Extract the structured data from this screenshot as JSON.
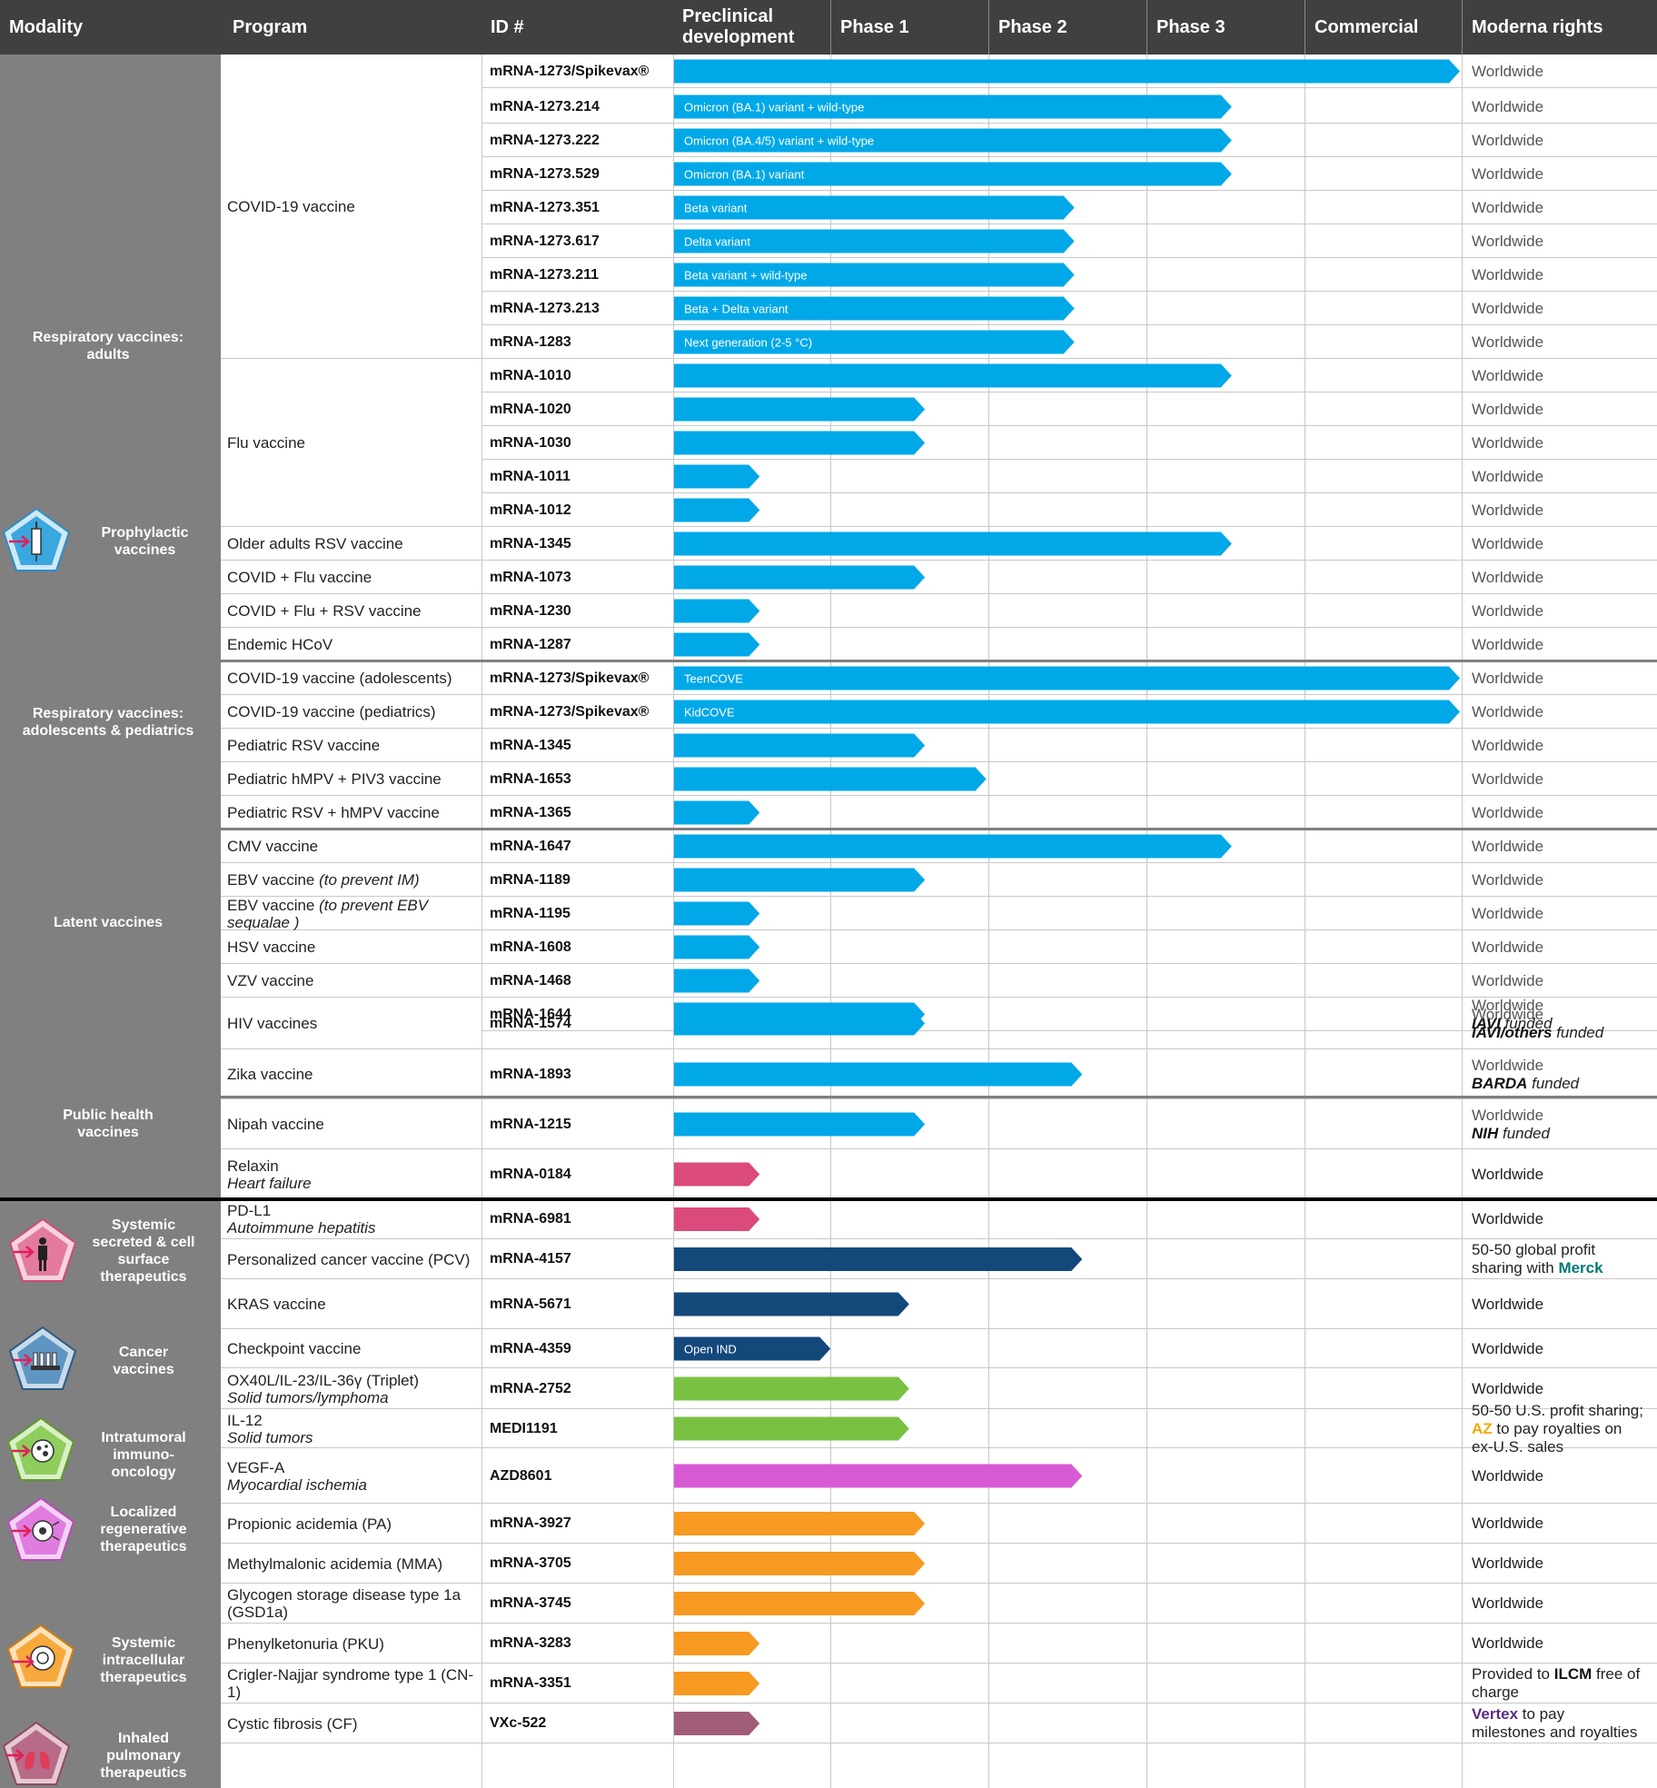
{
  "headers": {
    "modality": "Modality",
    "program": "Program",
    "id": "ID #",
    "preclinical": [
      "Preclinical",
      "development"
    ],
    "phase1": "Phase 1",
    "phase2": "Phase 2",
    "phase3": "Phase 3",
    "commercial": "Commercial",
    "rights": "Moderna rights"
  },
  "modalities": [
    {
      "label": [
        "Respiratory vaccines:",
        "adults"
      ],
      "icon": null
    },
    {
      "label": [
        "Prophylactic",
        "vaccines"
      ],
      "icon": "syringe-icon"
    },
    {
      "label": [
        "Respiratory vaccines:",
        "adolescents & pediatrics"
      ],
      "icon": null
    },
    {
      "label": [
        "Latent vaccines"
      ],
      "icon": null
    },
    {
      "label": [
        "Public health",
        "vaccines"
      ],
      "icon": null
    },
    {
      "label": [
        "Systemic",
        "secreted & cell",
        "surface",
        "therapeutics"
      ],
      "icon": "person-icon"
    },
    {
      "label": [
        "Cancer",
        "vaccines"
      ],
      "icon": "vials-icon"
    },
    {
      "label": [
        "Intratumoral",
        "immuno-",
        "oncology"
      ],
      "icon": "tumor-cell-icon"
    },
    {
      "label": [
        "Localized",
        "regenerative",
        "therapeutics"
      ],
      "icon": "regenerative-cell-icon"
    },
    {
      "label": [
        "Systemic",
        "intracellular",
        "therapeutics"
      ],
      "icon": "intracellular-cell-icon"
    },
    {
      "label": [
        "Inhaled",
        "pulmonary",
        "therapeutics"
      ],
      "icon": "lungs-icon"
    }
  ],
  "colors": {
    "header_bg": "#404040",
    "modality_bg": "#808080",
    "infectious": "#00A8E8",
    "systemic_secreted": "#DB4A7C",
    "cancer": "#13487B",
    "intratumoral": "#79C142",
    "regenerative": "#D65AD4",
    "intracellular": "#F79A21",
    "pulmonary": "#A15C78",
    "merck": "#007A73",
    "az": "#F0AB00",
    "vertex": "#5B2C83"
  },
  "chart_data": {
    "type": "pipeline",
    "stages": [
      "Preclinical development",
      "Phase 1",
      "Phase 2",
      "Phase 3",
      "Commercial"
    ],
    "stage_scale": "0 = start of Preclinical, 1 = end of Preclinical, 5 = end of Commercial",
    "programs": [
      {
        "program": "COVID-19 vaccine",
        "id": "mRNA-1273/Spikevax®",
        "progress": 5.0,
        "bar_label": "",
        "color": "infectious",
        "rights": [
          "Worldwide"
        ]
      },
      {
        "program": "",
        "id": "mRNA-1273.214",
        "progress": 3.55,
        "bar_label": "Omicron (BA.1) variant + wild-type",
        "color": "infectious",
        "rights": [
          "Worldwide"
        ]
      },
      {
        "program": "",
        "id": "mRNA-1273.222",
        "progress": 3.55,
        "bar_label": "Omicron (BA.4/5) variant + wild-type",
        "color": "infectious",
        "rights": [
          "Worldwide"
        ]
      },
      {
        "program": "",
        "id": "mRNA-1273.529",
        "progress": 3.55,
        "bar_label": "Omicron (BA.1) variant",
        "color": "infectious",
        "rights": [
          "Worldwide"
        ]
      },
      {
        "program": "",
        "id": "mRNA-1273.351",
        "progress": 2.55,
        "bar_label": "Beta variant",
        "color": "infectious",
        "rights": [
          "Worldwide"
        ]
      },
      {
        "program": "",
        "id": "mRNA-1273.617",
        "progress": 2.55,
        "bar_label": "Delta variant",
        "color": "infectious",
        "rights": [
          "Worldwide"
        ]
      },
      {
        "program": "",
        "id": "mRNA-1273.211",
        "progress": 2.55,
        "bar_label": "Beta variant + wild-type",
        "color": "infectious",
        "rights": [
          "Worldwide"
        ]
      },
      {
        "program": "",
        "id": "mRNA-1273.213",
        "progress": 2.55,
        "bar_label": "Beta + Delta variant",
        "color": "infectious",
        "rights": [
          "Worldwide"
        ]
      },
      {
        "program": "",
        "id": "mRNA-1283",
        "progress": 2.55,
        "bar_label": "Next generation (2-5 °C)",
        "color": "infectious",
        "rights": [
          "Worldwide"
        ]
      },
      {
        "program": "Flu vaccine",
        "id": "mRNA-1010",
        "progress": 3.55,
        "bar_label": "",
        "color": "infectious",
        "rights": [
          "Worldwide"
        ]
      },
      {
        "program": "",
        "id": "mRNA-1020",
        "progress": 1.6,
        "bar_label": "",
        "color": "infectious",
        "rights": [
          "Worldwide"
        ]
      },
      {
        "program": "",
        "id": "mRNA-1030",
        "progress": 1.6,
        "bar_label": "",
        "color": "infectious",
        "rights": [
          "Worldwide"
        ]
      },
      {
        "program": "",
        "id": "mRNA-1011",
        "progress": 0.55,
        "bar_label": "",
        "color": "infectious",
        "rights": [
          "Worldwide"
        ]
      },
      {
        "program": "",
        "id": "mRNA-1012",
        "progress": 0.55,
        "bar_label": "",
        "color": "infectious",
        "rights": [
          "Worldwide"
        ]
      },
      {
        "program": "Older adults RSV vaccine",
        "id": "mRNA-1345",
        "progress": 3.55,
        "bar_label": "",
        "color": "infectious",
        "rights": [
          "Worldwide"
        ]
      },
      {
        "program": "COVID + Flu vaccine",
        "id": "mRNA-1073",
        "progress": 1.6,
        "bar_label": "",
        "color": "infectious",
        "rights": [
          "Worldwide"
        ]
      },
      {
        "program": "COVID + Flu + RSV vaccine",
        "id": "mRNA-1230",
        "progress": 0.55,
        "bar_label": "",
        "color": "infectious",
        "rights": [
          "Worldwide"
        ]
      },
      {
        "program": "Endemic HCoV",
        "id": "mRNA-1287",
        "progress": 0.55,
        "bar_label": "",
        "color": "infectious",
        "rights": [
          "Worldwide"
        ]
      },
      {
        "program": "COVID-19 vaccine (adolescents)",
        "id": "mRNA-1273/Spikevax®",
        "progress": 5.0,
        "bar_label": "TeenCOVE",
        "color": "infectious",
        "rights": [
          "Worldwide"
        ]
      },
      {
        "program": "COVID-19 vaccine (pediatrics)",
        "id": "mRNA-1273/Spikevax®",
        "progress": 5.0,
        "bar_label": "KidCOVE",
        "color": "infectious",
        "rights": [
          "Worldwide"
        ]
      },
      {
        "program": "Pediatric  RSV vaccine",
        "id": "mRNA-1345",
        "progress": 1.6,
        "bar_label": "",
        "color": "infectious",
        "rights": [
          "Worldwide"
        ]
      },
      {
        "program": "Pediatric hMPV + PIV3 vaccine",
        "id": "mRNA-1653",
        "progress": 1.99,
        "bar_label": "",
        "color": "infectious",
        "rights": [
          "Worldwide"
        ]
      },
      {
        "program": "Pediatric RSV + hMPV vaccine",
        "id": "mRNA-1365",
        "progress": 0.55,
        "bar_label": "",
        "color": "infectious",
        "rights": [
          "Worldwide"
        ]
      },
      {
        "program": "CMV vaccine",
        "id": "mRNA-1647",
        "progress": 3.55,
        "bar_label": "",
        "color": "infectious",
        "rights": [
          "Worldwide"
        ]
      },
      {
        "program": "EBV vaccine ",
        "program_sub": "(to prevent IM)",
        "id": "mRNA-1189",
        "progress": 1.6,
        "bar_label": "",
        "color": "infectious",
        "rights": [
          "Worldwide"
        ]
      },
      {
        "program": "EBV vaccine ",
        "program_sub": "(to prevent EBV sequalae )",
        "id": "mRNA-1195",
        "progress": 0.55,
        "bar_label": "",
        "color": "infectious",
        "rights": [
          "Worldwide"
        ]
      },
      {
        "program": "HSV vaccine",
        "id": "mRNA-1608",
        "progress": 0.55,
        "bar_label": "",
        "color": "infectious",
        "rights": [
          "Worldwide"
        ]
      },
      {
        "program": "VZV vaccine",
        "id": "mRNA-1468",
        "progress": 0.55,
        "bar_label": "",
        "color": "infectious",
        "rights": [
          "Worldwide"
        ]
      },
      {
        "program": "HIV vaccines",
        "id": "mRNA-1644",
        "progress": 1.6,
        "bar_label": "",
        "color": "infectious",
        "rights": [
          "Worldwide"
        ],
        "rights_note": {
          "bold": "IAVI",
          "text": " funded"
        }
      },
      {
        "program": "",
        "id": "mRNA-1574",
        "progress": 1.6,
        "bar_label": "",
        "color": "infectious",
        "rights": [
          "Worldwide"
        ],
        "rights_note": {
          "bold": "IAVI/others",
          "text": " funded"
        }
      },
      {
        "program": "Zika vaccine",
        "id": "mRNA-1893",
        "progress": 2.6,
        "bar_label": "",
        "color": "infectious",
        "rights": [
          "Worldwide"
        ],
        "rights_note": {
          "bold": "BARDA",
          "text": " funded"
        }
      },
      {
        "program": "Nipah vaccine",
        "id": "mRNA-1215",
        "progress": 1.6,
        "bar_label": "",
        "color": "infectious",
        "rights": [
          "Worldwide"
        ],
        "rights_note": {
          "bold": "NIH",
          "text": " funded"
        }
      },
      {
        "program": "Relaxin",
        "program_sub": "Heart failure",
        "id": "mRNA-0184",
        "progress": 0.55,
        "bar_label": "",
        "color": "systemic_secreted",
        "rights": [
          "Worldwide"
        ]
      },
      {
        "program": "PD-L1",
        "program_sub": "Autoimmune hepatitis",
        "id": "mRNA-6981",
        "progress": 0.55,
        "bar_label": "",
        "color": "systemic_secreted",
        "rights": [
          "Worldwide"
        ]
      },
      {
        "program": "Personalized cancer vaccine (PCV)",
        "id": "mRNA-4157",
        "progress": 2.6,
        "bar_label": "",
        "color": "cancer",
        "rights": [
          "50-50 global profit",
          "sharing with "
        ],
        "rights_partner": {
          "name": "Merck",
          "color": "merck"
        }
      },
      {
        "program": "KRAS vaccine",
        "id": "mRNA-5671",
        "progress": 1.5,
        "bar_label": "",
        "color": "cancer",
        "rights": [
          "Worldwide"
        ]
      },
      {
        "program": "Checkpoint vaccine",
        "id": "mRNA-4359",
        "progress": 1.0,
        "bar_label": "Open IND",
        "color": "cancer",
        "rights": [
          "Worldwide"
        ]
      },
      {
        "program": "OX40L/IL-23/IL-36γ (Triplet)",
        "program_sub": "Solid tumors/lymphoma",
        "id": "mRNA-2752",
        "progress": 1.5,
        "bar_label": "",
        "color": "intratumoral",
        "rights": [
          "Worldwide"
        ]
      },
      {
        "program": "IL-12",
        "program_sub": "Solid tumors",
        "id": "MEDI1191",
        "progress": 1.5,
        "bar_label": "",
        "color": "intratumoral",
        "rights": [
          "50-50 U.S. profit sharing;",
          " to pay royalties on",
          "ex-U.S. sales"
        ],
        "rights_partner": {
          "name": "AZ",
          "color": "az"
        }
      },
      {
        "program": "VEGF-A",
        "program_sub": "Myocardial ischemia",
        "id": "AZD8601",
        "progress": 2.6,
        "bar_label": "",
        "color": "regenerative",
        "rights": [
          "Worldwide"
        ]
      },
      {
        "program": "Propionic acidemia (PA)",
        "id": "mRNA-3927",
        "progress": 1.6,
        "bar_label": "",
        "color": "intracellular",
        "rights": [
          "Worldwide"
        ]
      },
      {
        "program": "Methylmalonic acidemia (MMA)",
        "id": "mRNA-3705",
        "progress": 1.6,
        "bar_label": "",
        "color": "intracellular",
        "rights": [
          "Worldwide"
        ]
      },
      {
        "program": "Glycogen storage disease type 1a (GSD1a)",
        "id": "mRNA-3745",
        "progress": 1.6,
        "bar_label": "",
        "color": "intracellular",
        "rights": [
          "Worldwide"
        ]
      },
      {
        "program": "Phenylketonuria (PKU)",
        "id": "mRNA-3283",
        "progress": 0.55,
        "bar_label": "",
        "color": "intracellular",
        "rights": [
          "Worldwide"
        ]
      },
      {
        "program": "Crigler-Najjar syndrome type 1 (CN-1)",
        "id": "mRNA-3351",
        "progress": 0.55,
        "bar_label": "",
        "color": "intracellular",
        "rights": [
          "Provided to ",
          " free of",
          "charge"
        ],
        "rights_partner": {
          "name": "ILCM",
          "color": ""
        }
      },
      {
        "program": "Cystic fibrosis (CF)",
        "id": "VXc-522",
        "progress": 0.55,
        "bar_label": "",
        "color": "pulmonary",
        "rights": [
          " to pay",
          "milestones and royalties"
        ],
        "rights_partner": {
          "name": "Vertex",
          "color": "vertex"
        }
      }
    ]
  }
}
